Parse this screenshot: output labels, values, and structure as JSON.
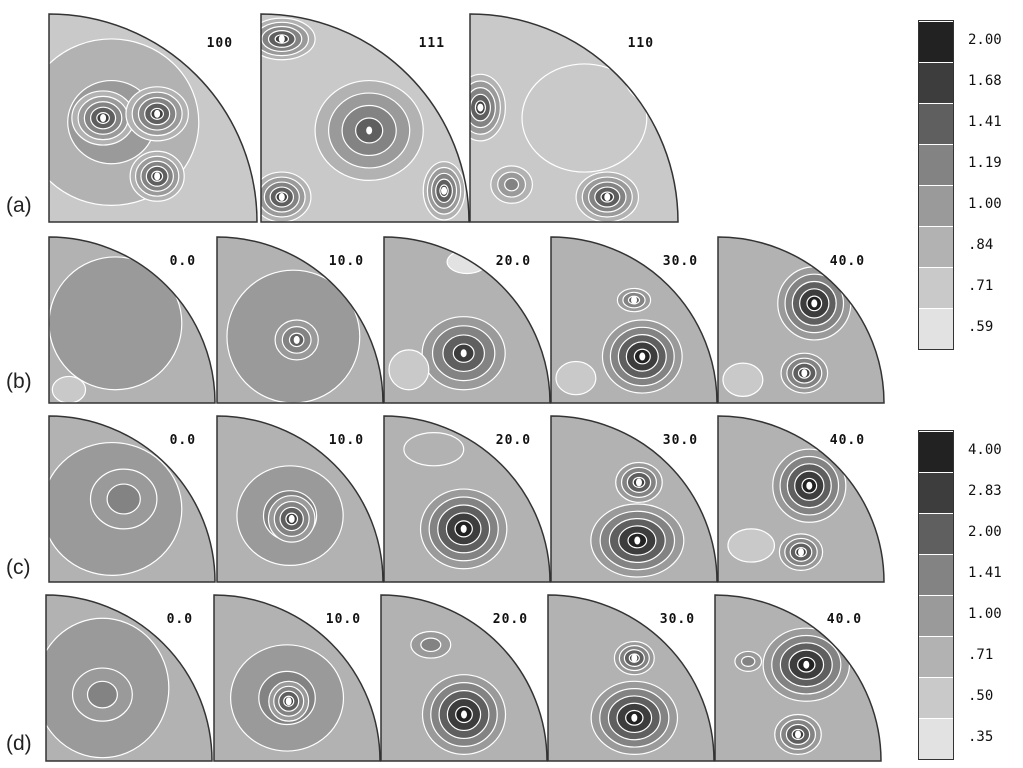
{
  "figure": {
    "row_labels": [
      "(a)",
      "(b)",
      "(c)",
      "(d)"
    ],
    "rows": [
      {
        "label": "(a)",
        "panels": [
          "100",
          "111",
          "110"
        ]
      },
      {
        "label": "(b)",
        "panels": [
          "0.0",
          "10.0",
          "20.0",
          "30.0",
          "40.0"
        ]
      },
      {
        "label": "(c)",
        "panels": [
          "0.0",
          "10.0",
          "20.0",
          "30.0",
          "40.0"
        ]
      },
      {
        "label": "(d)",
        "panels": [
          "0.0",
          "10.0",
          "20.0",
          "30.0",
          "40.0"
        ]
      }
    ],
    "legends": [
      {
        "levels": [
          "2.00",
          "1.68",
          "1.41",
          "1.19",
          "1.00",
          ".84",
          ".71",
          ".59"
        ]
      },
      {
        "levels": [
          "4.00",
          "2.83",
          "2.00",
          "1.41",
          "1.00",
          ".71",
          ".50",
          ".35"
        ]
      }
    ],
    "colors": {
      "shades": [
        "#ffffff",
        "#e2e2e2",
        "#c9c9c9",
        "#b2b2b2",
        "#9a9a9a",
        "#838383",
        "#5f5f5f",
        "#3d3d3d",
        "#222222"
      ],
      "contour": "#ffffff",
      "outline": "#333333"
    }
  }
}
